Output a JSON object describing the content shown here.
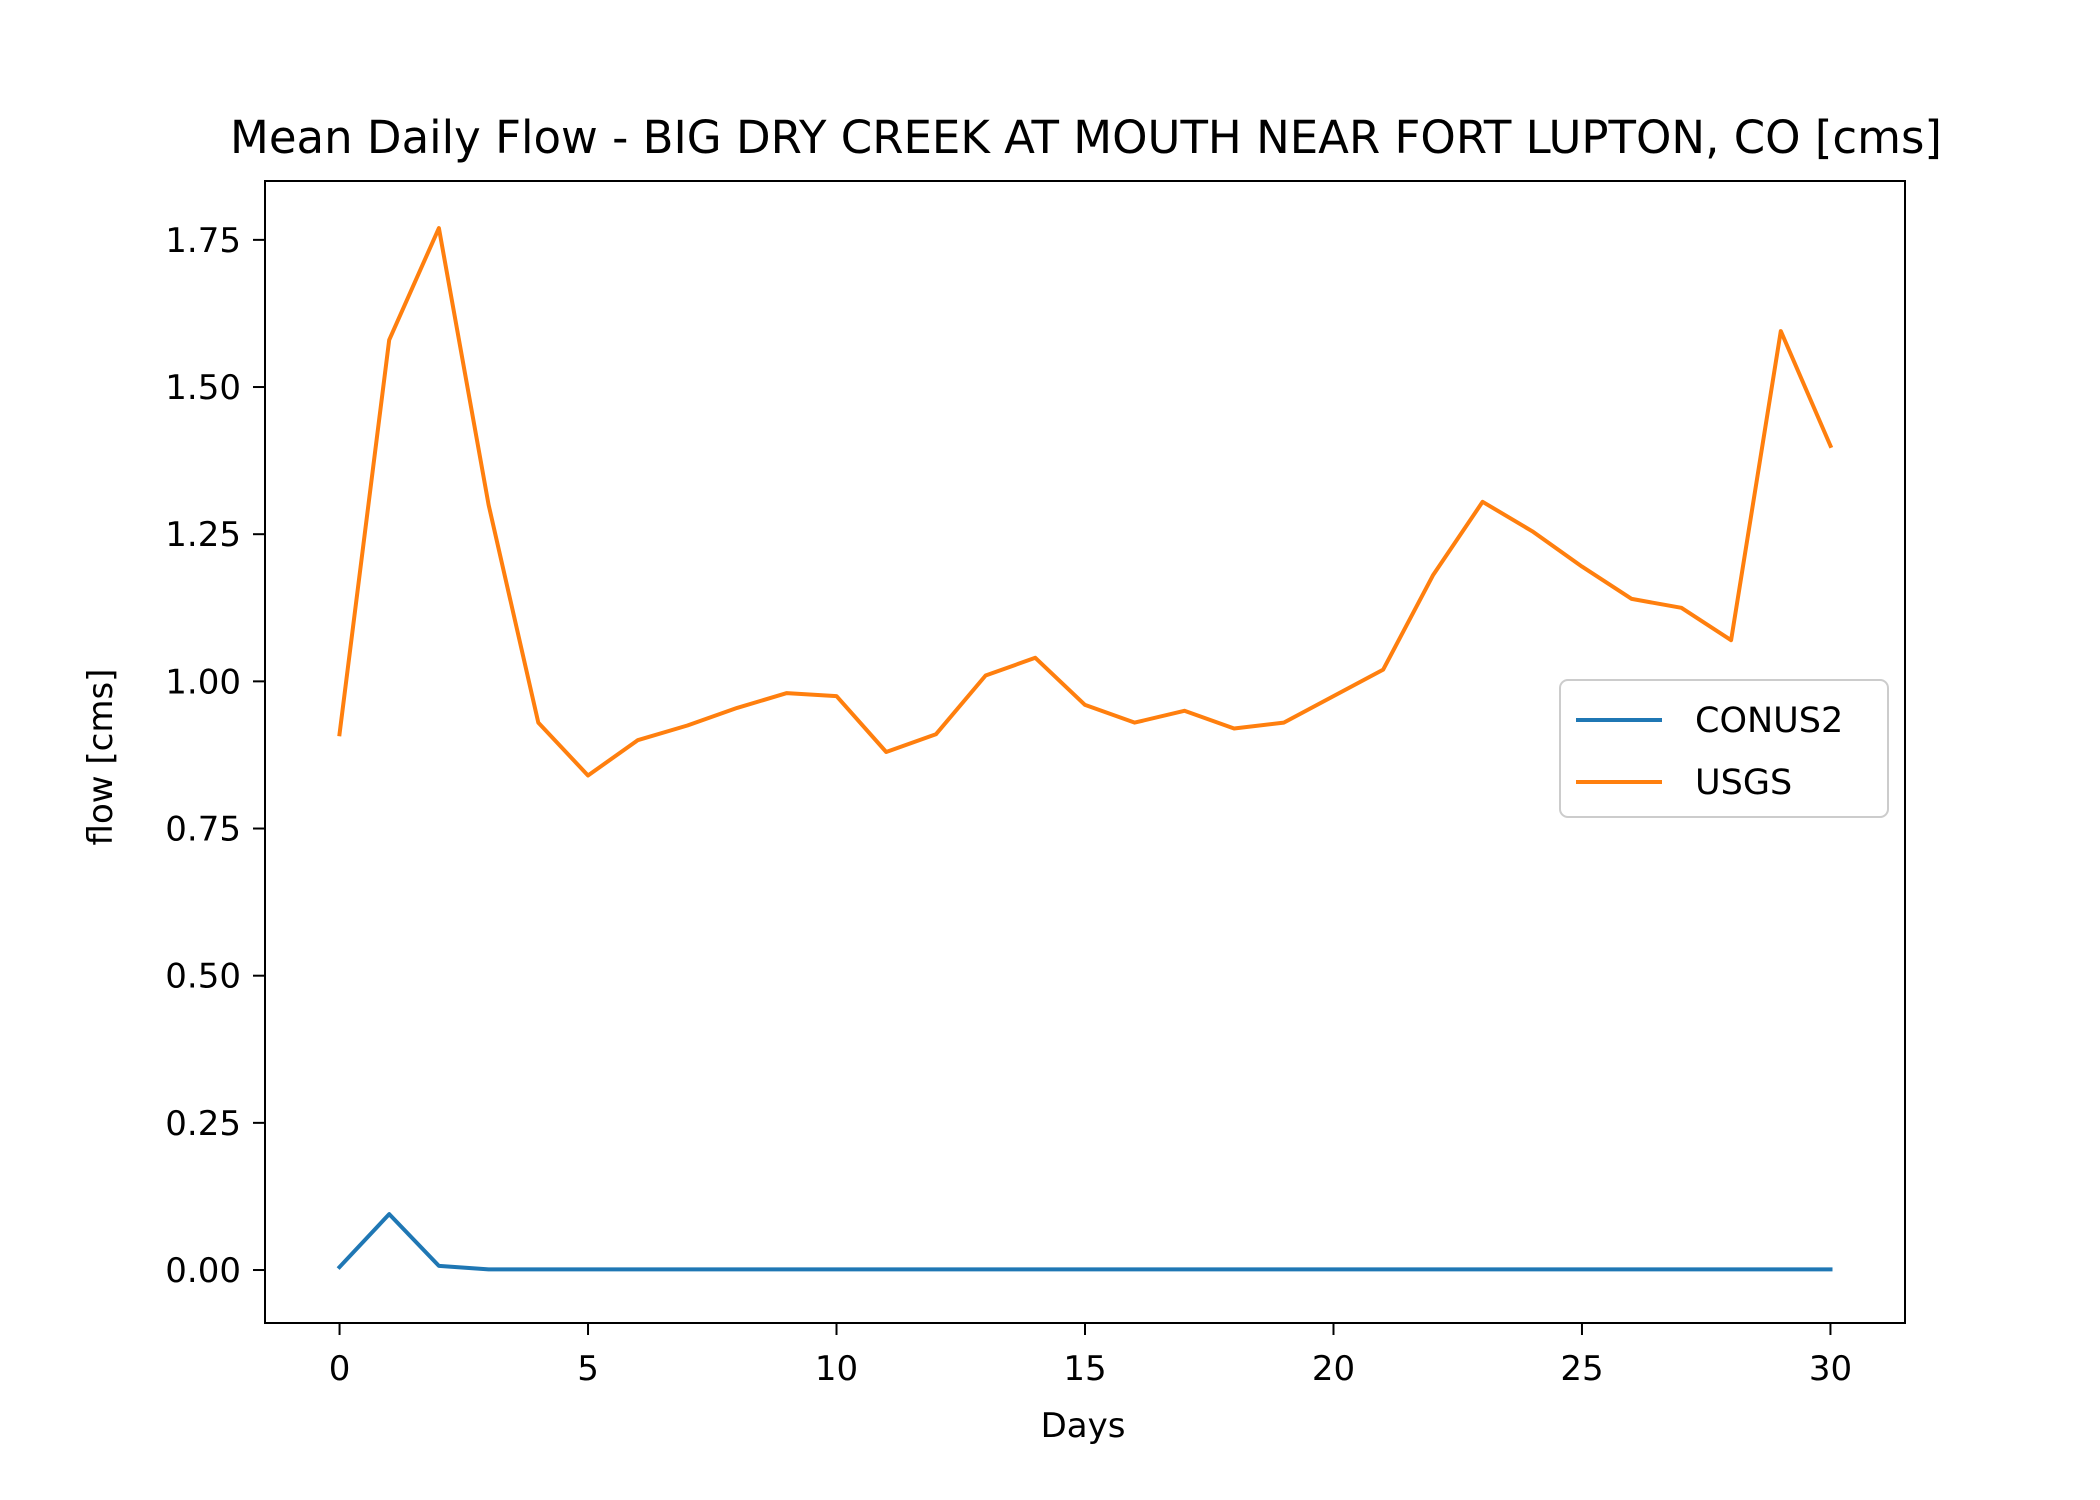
{
  "chart_data": {
    "type": "line",
    "title": "Mean Daily Flow - BIG DRY CREEK AT MOUTH NEAR FORT LUPTON, CO [cms]",
    "xlabel": "Days",
    "ylabel": "flow [cms]",
    "xlim": [
      -1.5,
      31.5
    ],
    "ylim": [
      -0.09,
      1.85
    ],
    "x_ticks": [
      0,
      5,
      10,
      15,
      20,
      25,
      30
    ],
    "x_tick_labels": [
      "0",
      "5",
      "10",
      "15",
      "20",
      "25",
      "30"
    ],
    "y_ticks": [
      0,
      0.25,
      0.5,
      0.75,
      1.0,
      1.25,
      1.5,
      1.75
    ],
    "y_tick_labels": [
      "0.00",
      "0.25",
      "0.50",
      "0.75",
      "1.00",
      "1.25",
      "1.50",
      "1.75"
    ],
    "grid": false,
    "legend_position": "center-right",
    "x": [
      0,
      1,
      2,
      3,
      4,
      5,
      6,
      7,
      8,
      9,
      10,
      11,
      12,
      13,
      14,
      15,
      16,
      17,
      18,
      19,
      20,
      21,
      22,
      23,
      24,
      25,
      26,
      27,
      28,
      29,
      30
    ],
    "series": [
      {
        "name": "CONUS2",
        "color": "#1f77b4",
        "values": [
          0.005,
          0.095,
          0.007,
          0.001,
          0.001,
          0.001,
          0.001,
          0.001,
          0.001,
          0.001,
          0.001,
          0.001,
          0.001,
          0.001,
          0.001,
          0.001,
          0.001,
          0.001,
          0.001,
          0.001,
          0.001,
          0.001,
          0.001,
          0.001,
          0.001,
          0.001,
          0.001,
          0.001,
          0.001,
          0.001,
          0.001
        ]
      },
      {
        "name": "USGS",
        "color": "#ff7f0e",
        "values": [
          0.91,
          1.58,
          1.77,
          1.3,
          0.93,
          0.84,
          0.9,
          0.925,
          0.955,
          0.98,
          0.975,
          0.88,
          0.91,
          1.01,
          1.04,
          0.96,
          0.93,
          0.95,
          0.92,
          0.93,
          0.975,
          1.02,
          1.18,
          1.305,
          1.255,
          1.195,
          1.14,
          1.125,
          1.07,
          1.595,
          1.4
        ]
      }
    ]
  }
}
